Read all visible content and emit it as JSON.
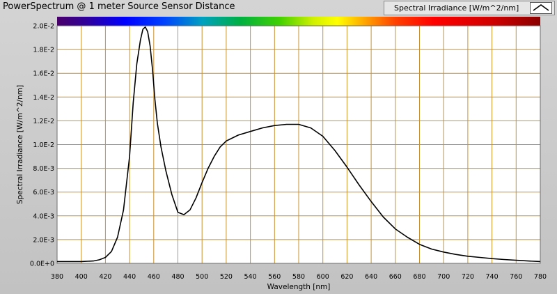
{
  "window": {
    "title": "PowerSpectrum @ 1 meter Source Sensor Distance"
  },
  "legend": {
    "label": "Spectral Irradiance [W/m^2/nm]"
  },
  "colors": {
    "plot_background": "#ffffff",
    "grid": "#c8922e",
    "trace": "#000000"
  },
  "chart_data": {
    "type": "line",
    "title": "PowerSpectrum @ 1 meter Source Sensor Distance",
    "xlabel": "Wavelength [nm]",
    "ylabel": "Spectral Irradiance [W/m^2/nm]",
    "xlim": [
      380,
      780
    ],
    "ylim": [
      0,
      0.02
    ],
    "grid": true,
    "legend_position": "top-right",
    "has_spectrum_color_bar": true,
    "x_ticks": [
      "380",
      "400",
      "420",
      "440",
      "460",
      "480",
      "500",
      "520",
      "540",
      "560",
      "580",
      "600",
      "620",
      "640",
      "660",
      "680",
      "700",
      "720",
      "740",
      "760",
      "780"
    ],
    "y_ticks": [
      "0.0E+0",
      "2.0E-3",
      "4.0E-3",
      "6.0E-3",
      "8.0E-3",
      "1.0E-2",
      "1.2E-2",
      "1.4E-2",
      "1.6E-2",
      "1.8E-2",
      "2.0E-2"
    ],
    "series": [
      {
        "name": "Spectral Irradiance [W/m^2/nm]",
        "x": [
          380,
          400,
          410,
          415,
          420,
          425,
          430,
          435,
          440,
          443,
          446,
          449,
          451,
          453,
          455,
          457,
          459,
          461,
          463,
          466,
          470,
          475,
          480,
          485,
          490,
          495,
          500,
          505,
          510,
          515,
          520,
          530,
          540,
          550,
          560,
          570,
          580,
          590,
          600,
          610,
          620,
          630,
          640,
          650,
          660,
          670,
          680,
          690,
          700,
          710,
          720,
          730,
          740,
          750,
          760,
          770,
          780
        ],
        "y": [
          0.00015,
          0.00015,
          0.0002,
          0.0003,
          0.0005,
          0.001,
          0.0022,
          0.0045,
          0.009,
          0.0135,
          0.0168,
          0.0188,
          0.0197,
          0.0199,
          0.0195,
          0.0183,
          0.0163,
          0.0138,
          0.0118,
          0.0098,
          0.0078,
          0.0058,
          0.0043,
          0.0041,
          0.0045,
          0.0055,
          0.0068,
          0.008,
          0.009,
          0.0098,
          0.0103,
          0.0108,
          0.0111,
          0.0114,
          0.0116,
          0.0117,
          0.0117,
          0.0114,
          0.0107,
          0.0095,
          0.0081,
          0.0066,
          0.0052,
          0.0039,
          0.0029,
          0.0022,
          0.0016,
          0.0012,
          0.00095,
          0.00075,
          0.0006,
          0.0005,
          0.0004,
          0.00032,
          0.00026,
          0.0002,
          0.00015
        ]
      }
    ]
  }
}
